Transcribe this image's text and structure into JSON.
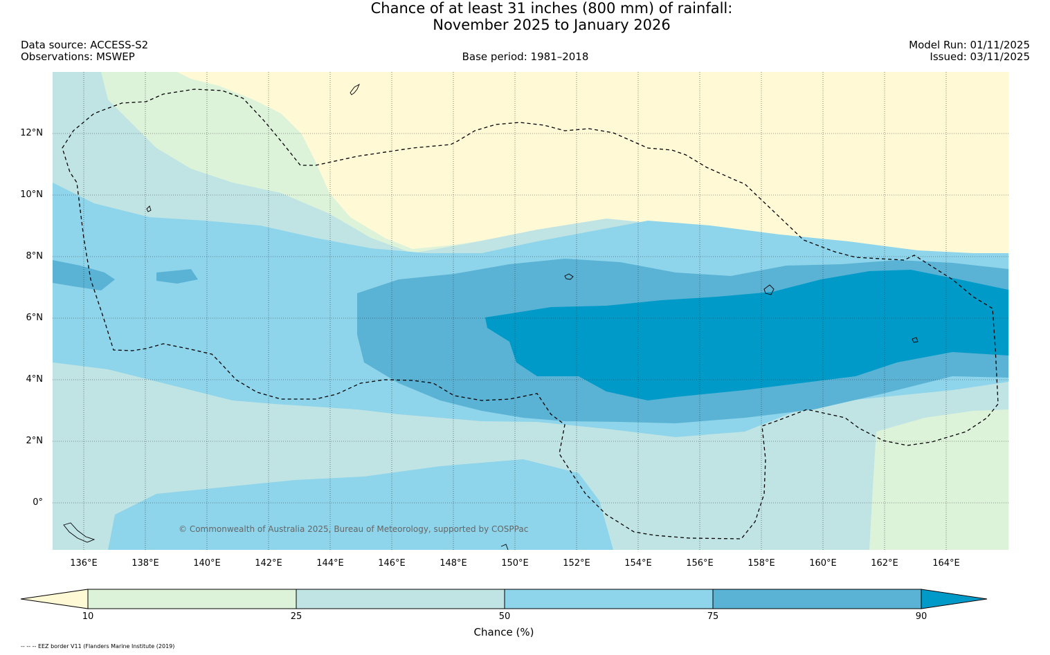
{
  "title": {
    "line1": "Chance of at least 31 inches (800  mm) of rainfall:",
    "line2": "November 2025 to January 2026"
  },
  "header": {
    "data_source": "Data source: ACCESS-S2",
    "observations": "Observations: MSWEP",
    "base_period": "Base period: 1981–2018",
    "model_run": "Model Run: 01/11/2025",
    "issued": "Issued: 03/11/2025"
  },
  "map": {
    "latitude_labels": [
      "12°N",
      "10°N",
      "8°N",
      "6°N",
      "4°N",
      "2°N",
      "0°"
    ],
    "longitude_labels": [
      "136°E",
      "138°E",
      "140°E",
      "142°E",
      "144°E",
      "146°E",
      "148°E",
      "150°E",
      "152°E",
      "154°E",
      "156°E",
      "158°E",
      "160°E",
      "162°E",
      "164°E"
    ],
    "credit": "© Commonwealth of Australia 2025, Bureau of Meteorology, supported by COSPPac",
    "colors": {
      "below_10": "#fff9d6",
      "c10_25": "#dcf3d9",
      "c25_50": "#c0e4e4",
      "c50_75": "#8ed4ea",
      "c75_90": "#5ab3d4",
      "above_90": "#009ac8",
      "eez_line": "#000000"
    }
  },
  "colorbar": {
    "ticks": [
      "10",
      "25",
      "50",
      "75",
      "90"
    ],
    "label": "Chance (%)"
  },
  "footnote": "-- -- -- EEZ border V11 (Flanders Marine Institute (2019)"
}
